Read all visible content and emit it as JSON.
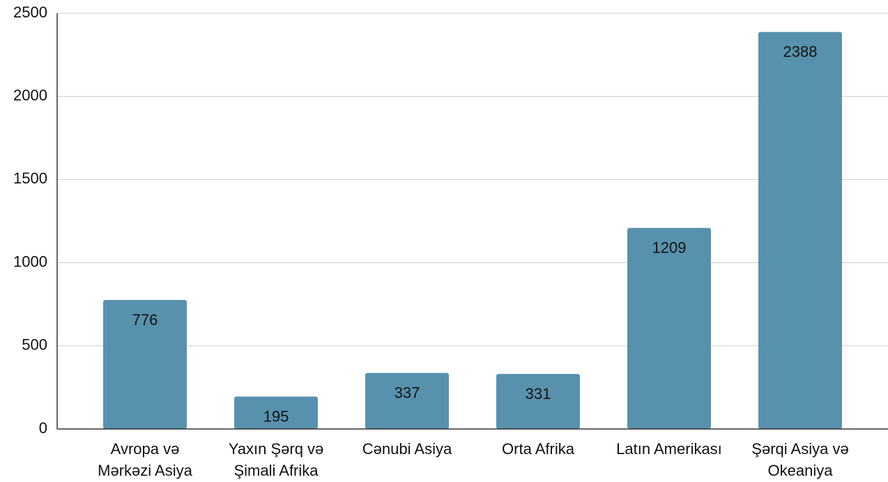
{
  "chart_data": {
    "type": "bar",
    "categories": [
      "Avropa və Mərkəzi Asiya",
      "Yaxın Şərq və Şimali Afrika",
      "Cənubi Asiya",
      "Orta Afrika",
      "Latın Amerikası",
      "Şərqi Asiya və Okeaniya"
    ],
    "values": [
      776,
      195,
      337,
      331,
      1209,
      2388
    ],
    "color": "#5891ad",
    "ylim": [
      0,
      2500
    ],
    "yticks": [
      0,
      500,
      1000,
      1500,
      2000,
      2500
    ],
    "grid": true
  }
}
